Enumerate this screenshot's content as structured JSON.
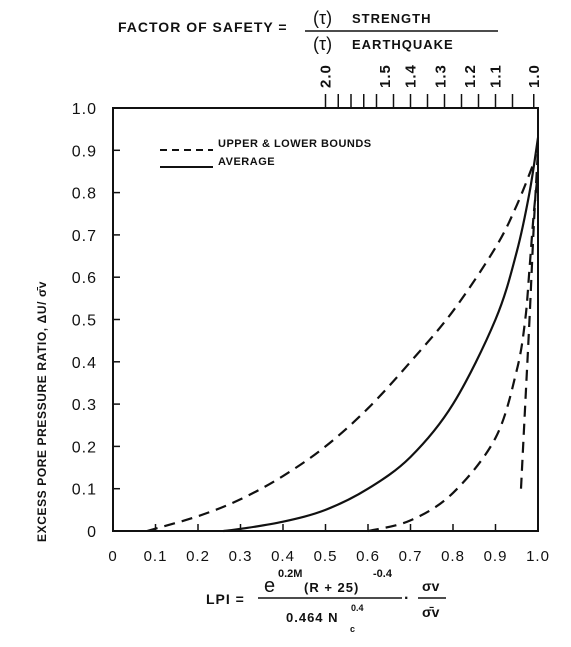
{
  "header": {
    "factor_of_safety_prefix": "FACTOR OF SAFETY =",
    "tau_numerator": "(τ)",
    "numerator_word": "STRENGTH",
    "tau_denominator": "(τ)",
    "denominator_word": "EARTHQUAKE"
  },
  "top_axis": {
    "labels": [
      {
        "text": "2.0",
        "x": 0.5
      },
      {
        "text": "1.5",
        "x": 0.64
      },
      {
        "text": "1.4",
        "x": 0.7
      },
      {
        "text": "1.3",
        "x": 0.77
      },
      {
        "text": "1.2",
        "x": 0.84
      },
      {
        "text": "1.1",
        "x": 0.9
      },
      {
        "text": "1.0",
        "x": 0.99
      }
    ],
    "tick_x": [
      0.5,
      0.53,
      0.56,
      0.59,
      0.62,
      0.66,
      0.7,
      0.74,
      0.78,
      0.82,
      0.86,
      0.9,
      0.94,
      0.99
    ]
  },
  "legend": {
    "dashed_label": "UPPER & LOWER BOUNDS",
    "solid_label": "AVERAGE"
  },
  "ylabel": "EXCESS PORE PRESSURE RATIO, ΔU/ σ̄v",
  "formula": {
    "lhs": "LPI =",
    "num_main": "e",
    "num_exp": "0.2M",
    "num_paren": "(R + 25)",
    "num_exp2": "-0.4",
    "den_main": "0.464 N",
    "den_sub": "c",
    "den_exp": "0.4",
    "dot": "·",
    "sigma_num": "σv",
    "sigma_den": "σ̄v"
  },
  "chart_data": {
    "type": "line",
    "title": "",
    "xlabel": "",
    "ylabel": "EXCESS PORE PRESSURE RATIO, ΔU/ σ̄v",
    "xlim": [
      0,
      1.0
    ],
    "ylim": [
      0,
      1.0
    ],
    "x_ticks": [
      "0",
      "0.1",
      "0.2",
      "0.3",
      "0.4",
      "0.5",
      "0.6",
      "0.7",
      "0.8",
      "0.9",
      "1.0"
    ],
    "y_ticks": [
      "0",
      "0.1",
      "0.2",
      "0.3",
      "0.4",
      "0.5",
      "0.6",
      "0.7",
      "0.8",
      "0.9",
      "1.0"
    ],
    "grid": false,
    "legend_position": "top-left",
    "series": [
      {
        "name": "UPPER & LOWER BOUNDS",
        "style": "dashed",
        "points": [
          [
            0.08,
            0.0
          ],
          [
            0.2,
            0.035
          ],
          [
            0.3,
            0.075
          ],
          [
            0.4,
            0.13
          ],
          [
            0.5,
            0.2
          ],
          [
            0.6,
            0.29
          ],
          [
            0.7,
            0.4
          ],
          [
            0.8,
            0.52
          ],
          [
            0.9,
            0.67
          ],
          [
            0.95,
            0.77
          ],
          [
            0.99,
            0.87
          ]
        ]
      },
      {
        "name": "AVERAGE",
        "style": "solid",
        "points": [
          [
            0.26,
            0.0
          ],
          [
            0.3,
            0.005
          ],
          [
            0.4,
            0.022
          ],
          [
            0.5,
            0.05
          ],
          [
            0.6,
            0.1
          ],
          [
            0.7,
            0.175
          ],
          [
            0.8,
            0.3
          ],
          [
            0.9,
            0.5
          ],
          [
            0.95,
            0.66
          ],
          [
            0.98,
            0.8
          ],
          [
            1.0,
            0.93
          ]
        ]
      },
      {
        "name": "",
        "style": "dashed",
        "points": [
          [
            0.6,
            0.0
          ],
          [
            0.7,
            0.025
          ],
          [
            0.8,
            0.09
          ],
          [
            0.9,
            0.22
          ],
          [
            0.95,
            0.38
          ],
          [
            0.97,
            0.5
          ],
          [
            0.98,
            0.62
          ],
          [
            0.99,
            0.75
          ],
          [
            1.0,
            0.85
          ]
        ]
      },
      {
        "name": "",
        "style": "dashed",
        "points": [
          [
            0.96,
            0.1
          ],
          [
            0.97,
            0.3
          ],
          [
            0.98,
            0.5
          ],
          [
            0.99,
            0.72
          ],
          [
            1.0,
            0.9
          ]
        ]
      }
    ]
  }
}
